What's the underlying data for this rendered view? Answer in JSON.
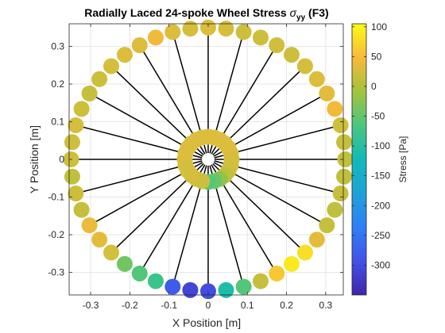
{
  "chart_data": {
    "type": "scatter",
    "title_main": "Radially Laced 24-spoke Wheel Stress ",
    "title_sym": "σ",
    "title_sub": "yy",
    "title_tail": " (F3)",
    "xlabel": "X Position [m]",
    "ylabel": "Y Position [m]",
    "xlim": [
      -0.355,
      0.345
    ],
    "ylim": [
      -0.36,
      0.36
    ],
    "xticks": [
      -0.3,
      -0.2,
      -0.1,
      0,
      0.1,
      0.2,
      0.3
    ],
    "xtick_labels": [
      "-0.3",
      "-0.2",
      "-0.1",
      "0",
      "0.1",
      "0.2",
      "0.3"
    ],
    "yticks": [
      -0.3,
      -0.2,
      -0.1,
      0,
      0.1,
      0.2,
      0.3
    ],
    "ytick_labels": [
      "-0.3",
      "-0.2",
      "-0.1",
      "0",
      "0.1",
      "0.2",
      "0.3"
    ],
    "grid": true,
    "colorbar": {
      "label": "Stress [Pa]",
      "lim": [
        -350,
        105
      ],
      "ticks": [
        100,
        50,
        0,
        -50,
        -100,
        -150,
        -200,
        -250,
        -300
      ],
      "tick_labels": [
        "100",
        "50",
        "0",
        "-50",
        "-100",
        "-150",
        "-200",
        "-250",
        "-300"
      ],
      "colormap": "parula"
    },
    "spokes": {
      "count": 24,
      "outer_radius": 0.35,
      "inner_radius": 0.0,
      "color": "#000000"
    },
    "rim_nodes": {
      "radius": 0.35,
      "angles_deg": [
        90,
        82.5,
        75,
        67.5,
        60,
        52.5,
        45,
        37.5,
        30,
        22.5,
        15,
        7.5,
        0,
        -7.5,
        -15,
        -22.5,
        -30,
        -37.5,
        -45,
        -52.5,
        -60,
        -67.5,
        -75,
        -82.5,
        -90,
        -97.5,
        -105,
        -112.5,
        -120,
        -127.5,
        -135,
        -142.5,
        -150,
        -157.5,
        -165,
        -172.5,
        180,
        172.5,
        165,
        157.5,
        150,
        142.5,
        135,
        127.5,
        120,
        112.5,
        105,
        97.5
      ],
      "stress": [
        30,
        25,
        20,
        20,
        22,
        20,
        25,
        30,
        35,
        45,
        20,
        15,
        10,
        10,
        15,
        10,
        15,
        35,
        80,
        90,
        60,
        15,
        -60,
        -110,
        -300,
        -310,
        -280,
        -80,
        -60,
        -40,
        25,
        35,
        40,
        15,
        20,
        10,
        20,
        20,
        25,
        20,
        15,
        20,
        25,
        30,
        30,
        45,
        30,
        25
      ]
    },
    "hub_nodes": {
      "radius": 0.06,
      "angles_deg": [
        90,
        75,
        60,
        45,
        30,
        15,
        0,
        -15,
        -30,
        -45,
        -60,
        -75,
        -90,
        -105,
        -120,
        -135,
        -150,
        -165,
        180,
        165,
        150,
        135,
        120,
        105
      ],
      "stress": [
        30,
        30,
        30,
        30,
        30,
        30,
        25,
        25,
        20,
        10,
        -20,
        -45,
        -60,
        20,
        20,
        25,
        25,
        25,
        25,
        30,
        30,
        30,
        30,
        30
      ]
    }
  }
}
